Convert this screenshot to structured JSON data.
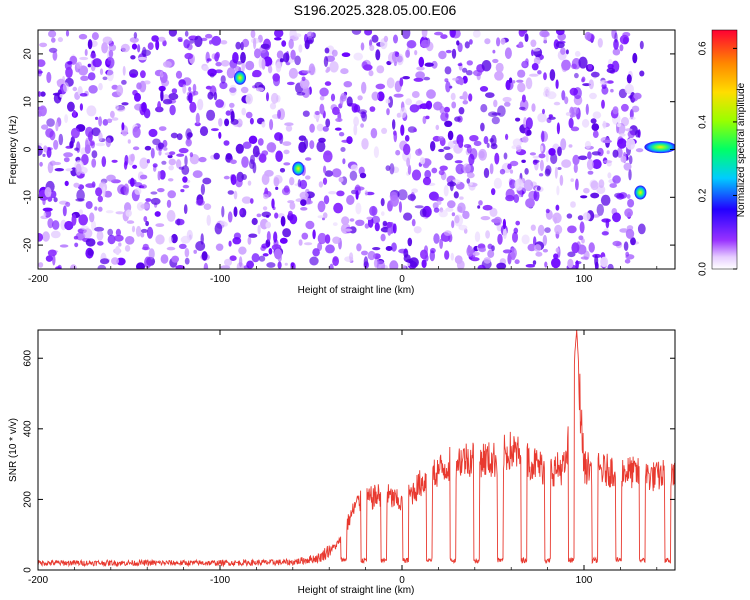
{
  "title": "S196.2025.328.05.00.E06",
  "chart_data": [
    {
      "type": "heatmap",
      "xlabel": "Height of straight line (km)",
      "ylabel": "Frequency (Hz)",
      "xlim": [
        -200,
        150
      ],
      "ylim": [
        -25,
        25
      ],
      "xticks": [
        -200,
        -100,
        0,
        100
      ],
      "yticks": [
        -20,
        -10,
        0,
        10,
        20
      ],
      "colorbar": {
        "label": "Normalized spectral amplitude",
        "range": [
          0.0,
          0.65
        ],
        "ticks": [
          0.0,
          0.2,
          0.4,
          0.6
        ]
      },
      "features": [
        {
          "x": -89,
          "y": 15,
          "amp": 0.3
        },
        {
          "x": -57,
          "y": -4,
          "amp": 0.3
        },
        {
          "x": 131,
          "y": -9,
          "amp": 0.45
        },
        {
          "x": 142,
          "y": 0.5,
          "amp": 0.5
        }
      ],
      "background_amplitude": "0.05-0.15"
    },
    {
      "type": "line",
      "xlabel": "Height of straight line (km)",
      "ylabel": "SNR (10 * v/v)",
      "xlim": [
        -200,
        150
      ],
      "ylim": [
        0,
        680
      ],
      "xticks": [
        -200,
        -100,
        0,
        100
      ],
      "yticks": [
        0,
        200,
        400,
        600
      ],
      "color": "#e8392f",
      "series": [
        {
          "x": [
            -200,
            -150,
            -100,
            -60,
            -45,
            -35,
            -25,
            -10,
            0,
            10,
            20,
            30,
            40,
            50,
            60,
            70,
            80,
            90,
            96,
            100,
            110,
            120,
            130,
            140,
            150
          ],
          "values": [
            20,
            20,
            20,
            22,
            35,
            80,
            200,
            230,
            200,
            260,
            300,
            330,
            340,
            330,
            360,
            330,
            300,
            310,
            680,
            310,
            300,
            300,
            290,
            280,
            300
          ]
        }
      ],
      "dips": [
        -32,
        -21,
        -10,
        2,
        15,
        28,
        41,
        54,
        67,
        80,
        93,
        106,
        119,
        132,
        146
      ],
      "dip_value": 20
    }
  ]
}
